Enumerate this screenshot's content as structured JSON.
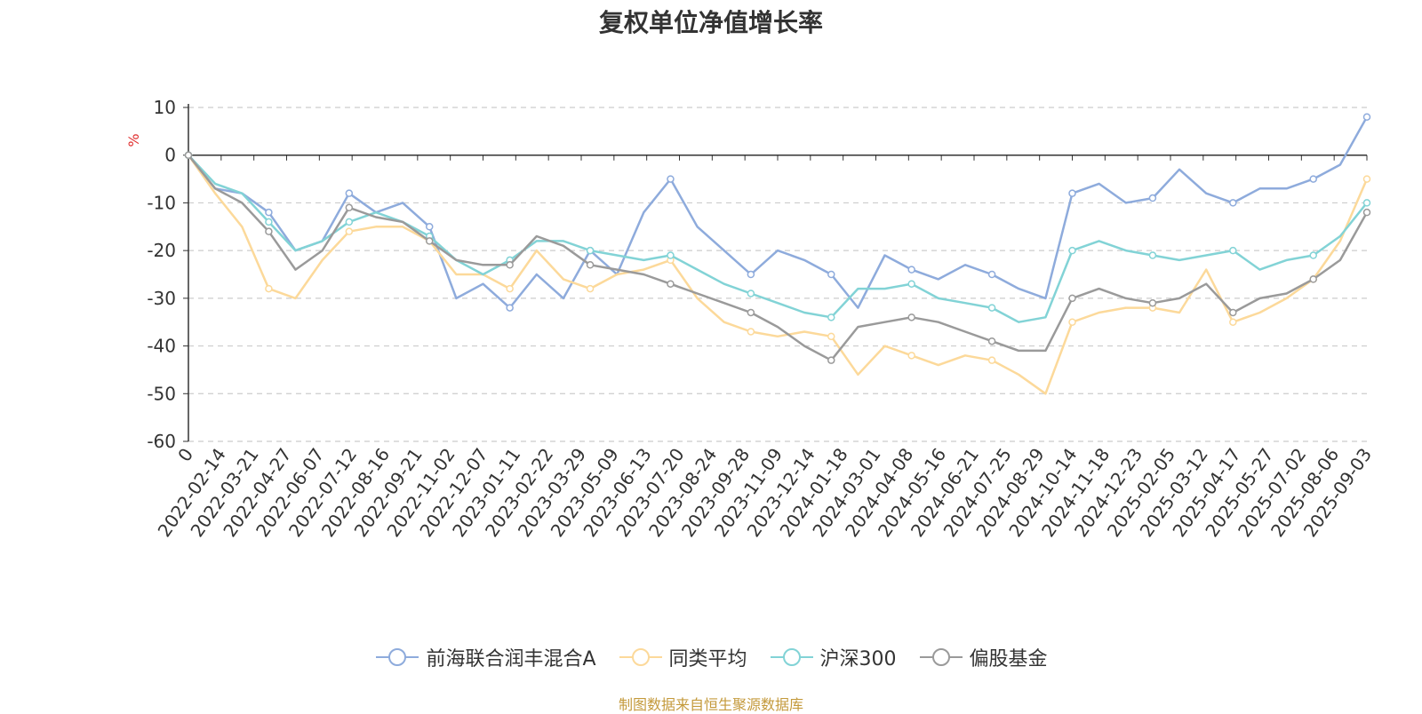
{
  "chart_data": {
    "type": "line",
    "title": "复权单位净值增长率",
    "ylabel": "%",
    "ylim": [
      -60,
      10
    ],
    "yticks": [
      "10",
      "0",
      "-10",
      "-20",
      "-30",
      "-40",
      "-50",
      "-60"
    ],
    "x_tick_labels": [
      "0",
      "2022-02-14",
      "2022-03-21",
      "2022-04-27",
      "2022-06-07",
      "2022-07-12",
      "2022-08-16",
      "2022-09-21",
      "2022-11-02",
      "2022-12-07",
      "2023-01-11",
      "2023-02-22",
      "2023-03-29",
      "2023-05-09",
      "2023-06-13",
      "2023-07-20",
      "2023-08-24",
      "2023-09-28",
      "2023-11-09",
      "2023-12-14",
      "2024-01-18",
      "2024-03-01",
      "2024-04-08",
      "2024-05-16",
      "2024-06-21",
      "2024-07-25",
      "2024-08-29",
      "2024-10-14",
      "2024-11-18",
      "2024-12-23",
      "2025-02-05",
      "2025-03-12",
      "2025-04-17",
      "2025-05-27",
      "2025-07-02",
      "2025-08-06",
      "2025-09-03"
    ],
    "grid": true,
    "legend_position": "bottom",
    "source": "制图数据来自恒生聚源数据库",
    "series": [
      {
        "name": "前海联合润丰混合A",
        "color": "#8eabdc",
        "values": [
          0,
          -7,
          -8,
          -12,
          -20,
          -18,
          -8,
          -12,
          -10,
          -15,
          -30,
          -27,
          -32,
          -25,
          -30,
          -20,
          -25,
          -12,
          -5,
          -15,
          -20,
          -25,
          -20,
          -22,
          -25,
          -32,
          -21,
          -24,
          -26,
          -23,
          -25,
          -28,
          -30,
          -8,
          -6,
          -10,
          -9,
          -3,
          -8,
          -10,
          -7,
          -7,
          -5,
          -2,
          8
        ]
      },
      {
        "name": "同类平均",
        "color": "#fcd99a",
        "values": [
          0,
          -8,
          -15,
          -28,
          -30,
          -22,
          -16,
          -15,
          -15,
          -18,
          -25,
          -25,
          -28,
          -20,
          -26,
          -28,
          -25,
          -24,
          -22,
          -30,
          -35,
          -37,
          -38,
          -37,
          -38,
          -46,
          -40,
          -42,
          -44,
          -42,
          -43,
          -46,
          -50,
          -35,
          -33,
          -32,
          -32,
          -33,
          -24,
          -35,
          -33,
          -30,
          -26,
          -18,
          -5
        ]
      },
      {
        "name": "沪深300",
        "color": "#82d3d6",
        "values": [
          0,
          -6,
          -8,
          -14,
          -20,
          -18,
          -14,
          -12,
          -14,
          -17,
          -22,
          -25,
          -22,
          -18,
          -18,
          -20,
          -21,
          -22,
          -21,
          -24,
          -27,
          -29,
          -31,
          -33,
          -34,
          -28,
          -28,
          -27,
          -30,
          -31,
          -32,
          -35,
          -34,
          -20,
          -18,
          -20,
          -21,
          -22,
          -21,
          -20,
          -24,
          -22,
          -21,
          -17,
          -10
        ]
      },
      {
        "name": "偏股基金",
        "color": "#9a9a9a",
        "values": [
          0,
          -7,
          -10,
          -16,
          -24,
          -20,
          -11,
          -13,
          -14,
          -18,
          -22,
          -23,
          -23,
          -17,
          -19,
          -23,
          -24,
          -25,
          -27,
          -29,
          -31,
          -33,
          -36,
          -40,
          -43,
          -36,
          -35,
          -34,
          -35,
          -37,
          -39,
          -41,
          -41,
          -30,
          -28,
          -30,
          -31,
          -30,
          -27,
          -33,
          -30,
          -29,
          -26,
          -22,
          -12
        ]
      }
    ]
  }
}
